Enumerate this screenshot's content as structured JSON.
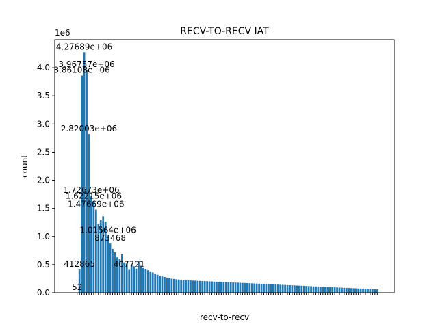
{
  "chart_data": {
    "type": "bar",
    "title": "RECV-TO-RECV IAT",
    "xlabel": "recv-to-recv",
    "ylabel": "count",
    "y_offset_text": "1e6",
    "ylim": [
      0,
      4500000
    ],
    "yticks": [
      0,
      500000,
      1000000,
      1500000,
      2000000,
      2500000,
      3000000,
      3500000,
      4000000
    ],
    "ytick_labels": [
      "0.0",
      "0.5",
      "1.0",
      "1.5",
      "2.0",
      "2.5",
      "3.0",
      "3.5",
      "4.0"
    ],
    "grid": false,
    "bar_color": "#1f77b4",
    "values": [
      52,
      412865,
      3861080,
      4276890,
      3967570,
      2820030,
      1726730,
      1622150,
      1476690,
      1227000,
      1301000,
      1358000,
      1266000,
      1015640,
      873468,
      780000,
      720000,
      630000,
      596000,
      690000,
      540000,
      520000,
      407721,
      500000,
      470000,
      430000,
      560000,
      480000,
      440000,
      420000,
      400000,
      380000,
      360000,
      340000,
      320000,
      300000,
      290000,
      280000,
      270000,
      260000,
      250000,
      245000,
      240000,
      235000,
      230000,
      225000,
      222000,
      220000,
      218000,
      216000,
      214000,
      212000,
      210000,
      208000,
      206000,
      204000,
      202000,
      200000,
      198000,
      196000,
      194000,
      192000,
      190000,
      188000,
      186000,
      184000,
      182000,
      180000,
      178000,
      176000,
      174000,
      172000,
      170000,
      168000,
      166000,
      164000,
      162000,
      160000,
      158000,
      156000,
      154000,
      152000,
      150000,
      148000,
      146000,
      144000,
      142000,
      140000,
      138000,
      136000,
      134000,
      132000,
      130000,
      128000,
      126000,
      124000,
      122000,
      120000,
      118000,
      116000,
      114000,
      112000,
      110000,
      108000,
      106000,
      104000,
      102000,
      100000,
      98000,
      96000,
      94000,
      92000,
      90000,
      88000,
      86000,
      84000,
      82000,
      80000,
      78000,
      76000,
      74000,
      72000,
      70000,
      68000,
      66000,
      64000,
      62000,
      60000
    ],
    "bar_labels": [
      {
        "index": 0,
        "text": "52"
      },
      {
        "index": 1,
        "text": "412865"
      },
      {
        "index": 2,
        "text": "3.86108e+06"
      },
      {
        "index": 3,
        "text": "4.27689e+06"
      },
      {
        "index": 4,
        "text": "3.96757e+06"
      },
      {
        "index": 5,
        "text": "2.82003e+06"
      },
      {
        "index": 6,
        "text": "1.72673e+06"
      },
      {
        "index": 7,
        "text": "1.62215e+06"
      },
      {
        "index": 8,
        "text": "1.47669e+06"
      },
      {
        "index": 13,
        "text": "1.01564e+06"
      },
      {
        "index": 14,
        "text": "873468"
      },
      {
        "index": 22,
        "text": "407721"
      }
    ]
  }
}
